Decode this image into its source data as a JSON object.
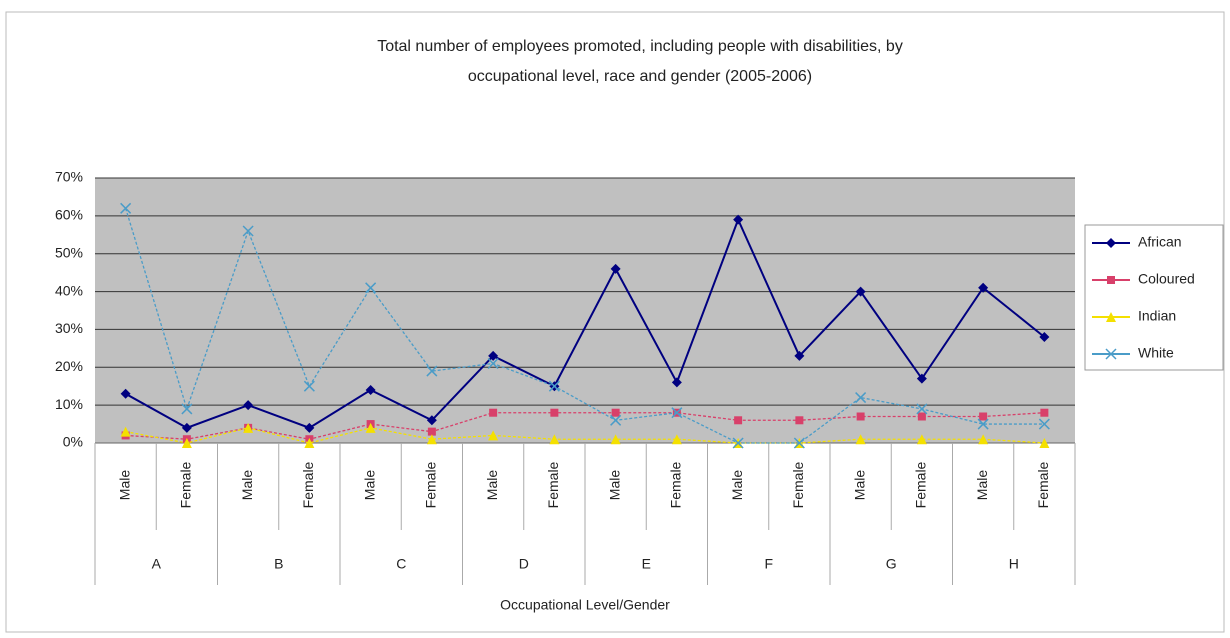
{
  "chart_data": {
    "type": "line",
    "title": [
      "Total number of employees promoted, including people with disabilities, by",
      "occupational level, race and gender (2005-2006)"
    ],
    "x_label": "Occupational Level/Gender",
    "categories": [
      "Male",
      "Female",
      "Male",
      "Female",
      "Male",
      "Female",
      "Male",
      "Female",
      "Male",
      "Female",
      "Male",
      "Female",
      "Male",
      "Female",
      "Male",
      "Female"
    ],
    "groups": [
      "A",
      "B",
      "C",
      "D",
      "E",
      "F",
      "G",
      "H"
    ],
    "series": [
      {
        "name": "African",
        "color": "#000080",
        "marker": "diamond",
        "values": [
          13,
          4,
          10,
          4,
          14,
          6,
          23,
          15,
          46,
          16,
          59,
          23,
          40,
          17,
          41,
          28
        ]
      },
      {
        "name": "Coloured",
        "color": "#d8406a",
        "marker": "square",
        "values": [
          2,
          1,
          4,
          1,
          5,
          3,
          8,
          8,
          8,
          8,
          6,
          6,
          7,
          7,
          7,
          8
        ]
      },
      {
        "name": "Indian",
        "color": "#f4e000",
        "marker": "triangle",
        "values": [
          3,
          0,
          4,
          0,
          4,
          1,
          2,
          1,
          1,
          1,
          0,
          0,
          1,
          1,
          1,
          0
        ]
      },
      {
        "name": "White",
        "color": "#4a9cc8",
        "marker": "x",
        "values": [
          62,
          9,
          56,
          15,
          41,
          19,
          21,
          15,
          6,
          8,
          0,
          0,
          12,
          9,
          5,
          5
        ]
      }
    ],
    "ylim": [
      0,
      70
    ],
    "yticks": [
      {
        "value": 0,
        "label": "0%"
      },
      {
        "value": 10,
        "label": "10%"
      },
      {
        "value": 20,
        "label": "20%"
      },
      {
        "value": 30,
        "label": "30%"
      },
      {
        "value": 40,
        "label": "40%"
      },
      {
        "value": 50,
        "label": "50%"
      },
      {
        "value": 60,
        "label": "60%"
      },
      {
        "value": 70,
        "label": "70%"
      }
    ],
    "grid": true,
    "legend": "right"
  }
}
